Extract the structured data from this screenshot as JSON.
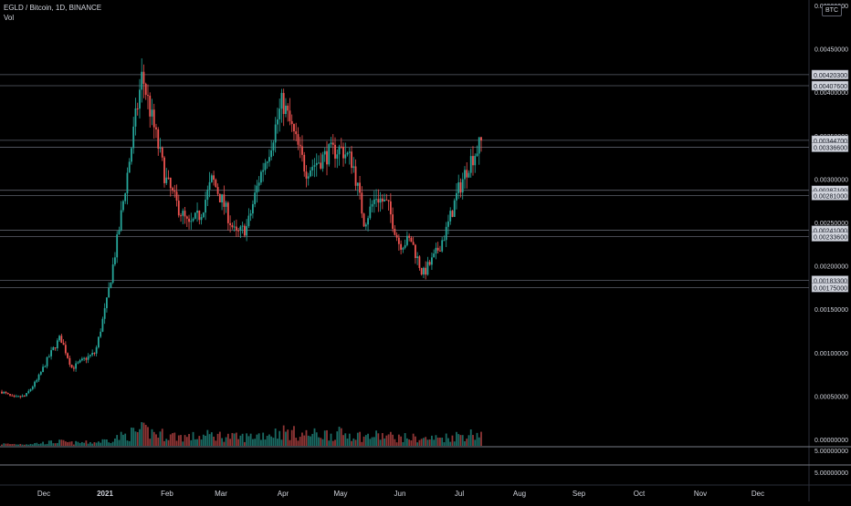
{
  "header": {
    "symbol": "EGLD / Bitcoin, 1D, BINANCE",
    "volume_label": "Vol",
    "currency": "BTC"
  },
  "colors": {
    "background": "#000000",
    "up": "#26a69a",
    "down": "#ef5350",
    "level_line": "#5d606b",
    "text": "#d1d4dc"
  },
  "chart_data": {
    "type": "candlestick",
    "title": "EGLD / Bitcoin, 1D, BINANCE",
    "y_axis": {
      "ticks": [
        "0.00500000",
        "0.00450000",
        "0.00400000",
        "0.00350000",
        "0.00300000",
        "0.00250000",
        "0.00200000",
        "0.00150000",
        "0.00100000",
        "0.00050000",
        "0.00000000"
      ],
      "range": [
        0,
        0.005
      ]
    },
    "x_axis": {
      "ticks": [
        "Dec",
        "2021",
        "Feb",
        "Mar",
        "Apr",
        "May",
        "Jun",
        "Jul",
        "Aug",
        "Sep",
        "Oct",
        "Nov",
        "Dec"
      ]
    },
    "horizontal_levels": [
      "0.00420300",
      "0.00407600",
      "0.00344700",
      "0.00336600",
      "0.00287100",
      "0.00281000",
      "0.00241000",
      "0.00233600",
      "0.00183300",
      "0.00175000"
    ],
    "volume_pane_ticks": [
      "5.00000000",
      "5.00000000"
    ],
    "series": [
      {
        "name": "EGLD / Bitcoin",
        "points": [
          {
            "x": "Nov 20",
            "y": 0.00055
          },
          {
            "x": "Dec",
            "y": 0.00048
          },
          {
            "x": "Dec 10",
            "y": 0.0005
          },
          {
            "x": "Dec 20",
            "y": 0.00068
          },
          {
            "x": "Dec 26",
            "y": 0.00095
          },
          {
            "x": "Dec 28",
            "y": 0.00118
          },
          {
            "x": "2021",
            "y": 0.00082
          },
          {
            "x": "Jan 10",
            "y": 0.00092
          },
          {
            "x": "Jan 18",
            "y": 0.001
          },
          {
            "x": "Jan 24",
            "y": 0.0016
          },
          {
            "x": "Jan 29",
            "y": 0.0024
          },
          {
            "x": "Feb",
            "y": 0.0033
          },
          {
            "x": "Feb 3",
            "y": 0.0042
          },
          {
            "x": "Feb 5",
            "y": 0.0036
          },
          {
            "x": "Feb 8",
            "y": 0.003
          },
          {
            "x": "Feb 15",
            "y": 0.0027
          },
          {
            "x": "Feb 22",
            "y": 0.00245
          },
          {
            "x": "Mar",
            "y": 0.0026
          },
          {
            "x": "Mar 8",
            "y": 0.003
          },
          {
            "x": "Mar 15",
            "y": 0.0027
          },
          {
            "x": "Mar 22",
            "y": 0.00235
          },
          {
            "x": "Mar 28",
            "y": 0.00245
          },
          {
            "x": "Apr",
            "y": 0.003
          },
          {
            "x": "Apr 8",
            "y": 0.0034
          },
          {
            "x": "Apr 12",
            "y": 0.0039
          },
          {
            "x": "Apr 18",
            "y": 0.0035
          },
          {
            "x": "Apr 24",
            "y": 0.0031
          },
          {
            "x": "May",
            "y": 0.0032
          },
          {
            "x": "May 8",
            "y": 0.0033
          },
          {
            "x": "May 15",
            "y": 0.00335
          },
          {
            "x": "May 22",
            "y": 0.0032
          },
          {
            "x": "May 27",
            "y": 0.0025
          },
          {
            "x": "Jun",
            "y": 0.0028
          },
          {
            "x": "Jun 8",
            "y": 0.0027
          },
          {
            "x": "Jun 15",
            "y": 0.00225
          },
          {
            "x": "Jun 22",
            "y": 0.0023
          },
          {
            "x": "Jun 26",
            "y": 0.0019
          },
          {
            "x": "Jul",
            "y": 0.0021
          },
          {
            "x": "Jul 3",
            "y": 0.0024
          },
          {
            "x": "Jul 6",
            "y": 0.00285
          },
          {
            "x": "Jul 9",
            "y": 0.0032
          },
          {
            "x": "Jul 12",
            "y": 0.00342
          }
        ]
      }
    ],
    "volume_note": "volume histogram shown in the lower part of the main pane"
  }
}
